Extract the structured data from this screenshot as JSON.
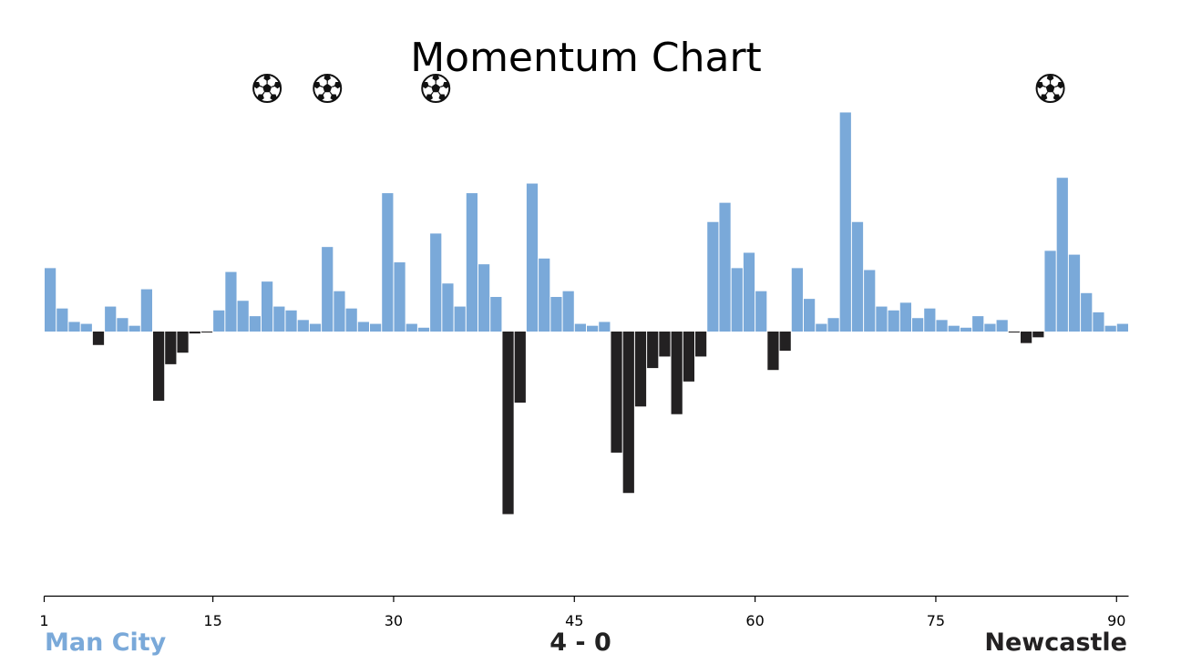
{
  "chart_data": {
    "type": "bar",
    "title": "Momentum Chart",
    "xlabel": "",
    "ylabel": "",
    "x_ticks": [
      "1",
      "15",
      "30",
      "45",
      "60",
      "75",
      "90"
    ],
    "x_range": [
      1,
      91
    ],
    "ylim": [
      -0.95,
      1.25
    ],
    "grid": false,
    "teams": {
      "home": {
        "name": "Man City",
        "color": "#7aa9d9"
      },
      "away": {
        "name": "Newcastle",
        "color": "#232122"
      }
    },
    "score": "4 - 0",
    "goal_minutes": [
      19,
      24,
      33,
      84
    ],
    "goal_icon": "soccer-ball-icon",
    "series": [
      {
        "values": [
          0.33,
          0.12,
          0.05,
          0.04,
          -0.07,
          0.13,
          0.07,
          0.03,
          0.22,
          -0.36,
          -0.17,
          -0.11,
          -0.01,
          -0.005,
          0.11,
          0.31,
          0.16,
          0.08,
          0.26,
          0.13,
          0.11,
          0.06,
          0.04,
          0.44,
          0.21,
          0.12,
          0.05,
          0.04,
          0.72,
          0.36,
          0.04,
          0.02,
          0.51,
          0.25,
          0.13,
          0.72,
          0.35,
          0.18,
          -0.95,
          -0.37,
          0.77,
          0.38,
          0.18,
          0.21,
          0.04,
          0.03,
          0.05,
          -0.63,
          -0.84,
          -0.39,
          -0.19,
          -0.13,
          -0.43,
          -0.26,
          -0.13,
          0.57,
          0.67,
          0.33,
          0.41,
          0.21,
          -0.2,
          -0.1,
          0.33,
          0.17,
          0.04,
          0.07,
          1.14,
          0.57,
          0.32,
          0.13,
          0.11,
          0.15,
          0.07,
          0.12,
          0.06,
          0.03,
          0.02,
          0.08,
          0.04,
          0.06,
          -0.005,
          -0.06,
          -0.03,
          0.42,
          0.8,
          0.4,
          0.2,
          0.1,
          0.03,
          0.04
        ]
      }
    ]
  }
}
